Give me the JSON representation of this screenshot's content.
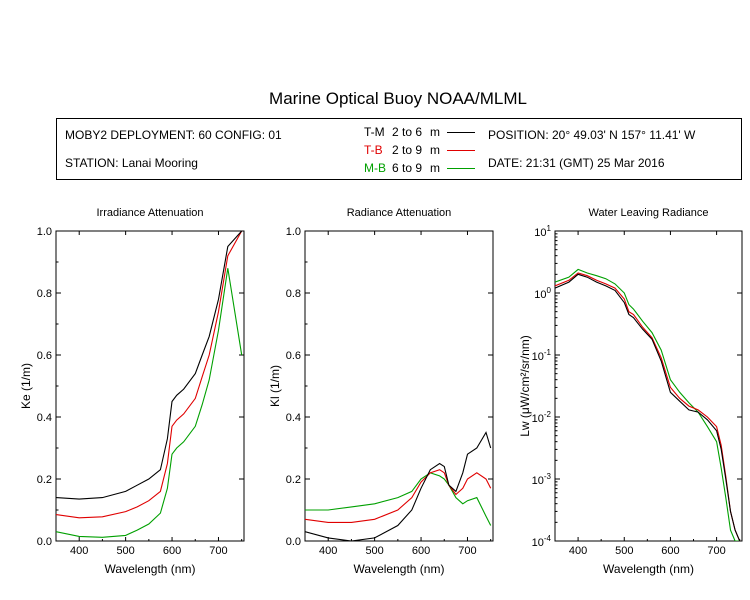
{
  "header": {
    "title": "Marine Optical Buoy NOAA/MLML"
  },
  "info": {
    "deployment": "MOBY2 DEPLOYMENT: 60 CONFIG: 01",
    "station": "STATION: Lanai Mooring",
    "position": "POSITION: 20° 49.03' N   157° 11.41' W",
    "date": "DATE: 21:31 (GMT) 25 Mar 2016",
    "legend": [
      {
        "code": "T-M",
        "range": "2 to 6",
        "unit": "m",
        "color": "#000000"
      },
      {
        "code": "T-B",
        "range": "2 to 9",
        "unit": "m",
        "color": "#e00000"
      },
      {
        "code": "M-B",
        "range": "6 to 9",
        "unit": "m",
        "color": "#00a000"
      }
    ]
  },
  "chart_data": [
    {
      "type": "line",
      "title": "Irradiance Attenuation",
      "xlabel": "Wavelength (nm)",
      "ylabel": "Ke  (1/m)",
      "xlim": [
        350,
        755
      ],
      "ylim": [
        0,
        1
      ],
      "xticks": [
        "400",
        "500",
        "600",
        "700"
      ],
      "yticks": [
        "0.0",
        "0.2",
        "0.4",
        "0.6",
        "0.8",
        "1.0"
      ],
      "x": [
        350,
        400,
        450,
        500,
        525,
        550,
        575,
        590,
        600,
        610,
        625,
        650,
        665,
        680,
        700,
        720,
        750
      ],
      "series": [
        {
          "code": "T-M",
          "color": "#000000",
          "values": [
            0.14,
            0.135,
            0.14,
            0.16,
            0.18,
            0.2,
            0.23,
            0.33,
            0.45,
            0.47,
            0.49,
            0.54,
            0.6,
            0.66,
            0.78,
            0.95,
            1.0
          ]
        },
        {
          "code": "T-B",
          "color": "#e00000",
          "values": [
            0.085,
            0.075,
            0.078,
            0.095,
            0.11,
            0.13,
            0.16,
            0.25,
            0.37,
            0.39,
            0.41,
            0.46,
            0.53,
            0.6,
            0.74,
            0.92,
            1.0
          ]
        },
        {
          "code": "M-B",
          "color": "#00a000",
          "values": [
            0.03,
            0.015,
            0.012,
            0.018,
            0.035,
            0.055,
            0.09,
            0.17,
            0.28,
            0.3,
            0.32,
            0.37,
            0.44,
            0.52,
            0.68,
            0.88,
            0.6
          ]
        }
      ]
    },
    {
      "type": "line",
      "title": "Radiance Attenuation",
      "xlabel": "Wavelength (nm)",
      "ylabel": "Kl  (1/m)",
      "xlim": [
        350,
        755
      ],
      "ylim": [
        0,
        1
      ],
      "xticks": [
        "400",
        "500",
        "600",
        "700"
      ],
      "yticks": [
        "0.0",
        "0.2",
        "0.4",
        "0.6",
        "0.8",
        "1.0"
      ],
      "x": [
        350,
        400,
        450,
        500,
        550,
        580,
        600,
        620,
        640,
        650,
        660,
        675,
        690,
        700,
        720,
        740,
        750
      ],
      "series": [
        {
          "code": "T-M",
          "color": "#000000",
          "values": [
            0.03,
            0.01,
            0.0,
            0.01,
            0.05,
            0.1,
            0.17,
            0.23,
            0.25,
            0.24,
            0.18,
            0.16,
            0.22,
            0.28,
            0.3,
            0.35,
            0.3
          ]
        },
        {
          "code": "T-B",
          "color": "#e00000",
          "values": [
            0.07,
            0.06,
            0.06,
            0.07,
            0.1,
            0.14,
            0.19,
            0.22,
            0.23,
            0.22,
            0.18,
            0.15,
            0.17,
            0.2,
            0.22,
            0.2,
            0.17
          ]
        },
        {
          "code": "M-B",
          "color": "#00a000",
          "values": [
            0.1,
            0.1,
            0.11,
            0.12,
            0.14,
            0.16,
            0.2,
            0.22,
            0.21,
            0.2,
            0.18,
            0.14,
            0.12,
            0.13,
            0.14,
            0.08,
            0.05
          ]
        }
      ]
    },
    {
      "type": "line",
      "title": "Water Leaving Radiance",
      "xlabel": "Wavelength (nm)",
      "ylabel": "Lw  (μW/cm²/sr/nm)",
      "xlim": [
        350,
        755
      ],
      "ylim": [
        0.0001,
        10
      ],
      "yscale": "log",
      "xticks": [
        "400",
        "500",
        "600",
        "700"
      ],
      "yticks": [
        {
          "base": "10",
          "exp": "-4",
          "value": 0.0001
        },
        {
          "base": "10",
          "exp": "-3",
          "value": 0.001
        },
        {
          "base": "10",
          "exp": "-2",
          "value": 0.01
        },
        {
          "base": "10",
          "exp": "-1",
          "value": 0.1
        },
        {
          "base": "10",
          "exp": "0",
          "value": 1
        },
        {
          "base": "10",
          "exp": "1",
          "value": 10
        }
      ],
      "x": [
        350,
        380,
        400,
        420,
        440,
        460,
        480,
        500,
        510,
        520,
        540,
        560,
        580,
        600,
        620,
        640,
        660,
        680,
        700,
        710,
        720,
        730,
        740,
        750
      ],
      "series": [
        {
          "code": "T-M",
          "color": "#000000",
          "values": [
            1.2,
            1.5,
            2.0,
            1.8,
            1.5,
            1.3,
            1.1,
            0.7,
            0.45,
            0.4,
            0.26,
            0.18,
            0.08,
            0.025,
            0.018,
            0.013,
            0.012,
            0.009,
            0.006,
            0.003,
            0.001,
            0.0003,
            0.00015,
            0.0001
          ]
        },
        {
          "code": "T-B",
          "color": "#e00000",
          "values": [
            1.3,
            1.6,
            2.1,
            1.9,
            1.6,
            1.4,
            1.2,
            0.8,
            0.5,
            0.45,
            0.28,
            0.19,
            0.09,
            0.03,
            0.02,
            0.015,
            0.013,
            0.01,
            0.007,
            0.0035,
            0.0011,
            0.0003,
            0.00015,
            0.0001
          ]
        },
        {
          "code": "M-B",
          "color": "#00a000",
          "values": [
            1.5,
            1.8,
            2.4,
            2.1,
            1.9,
            1.7,
            1.4,
            1.0,
            0.65,
            0.55,
            0.35,
            0.23,
            0.12,
            0.04,
            0.025,
            0.017,
            0.012,
            0.007,
            0.004,
            0.0015,
            0.0005,
            0.00015,
            0.0001,
            0.0001
          ]
        }
      ]
    }
  ]
}
